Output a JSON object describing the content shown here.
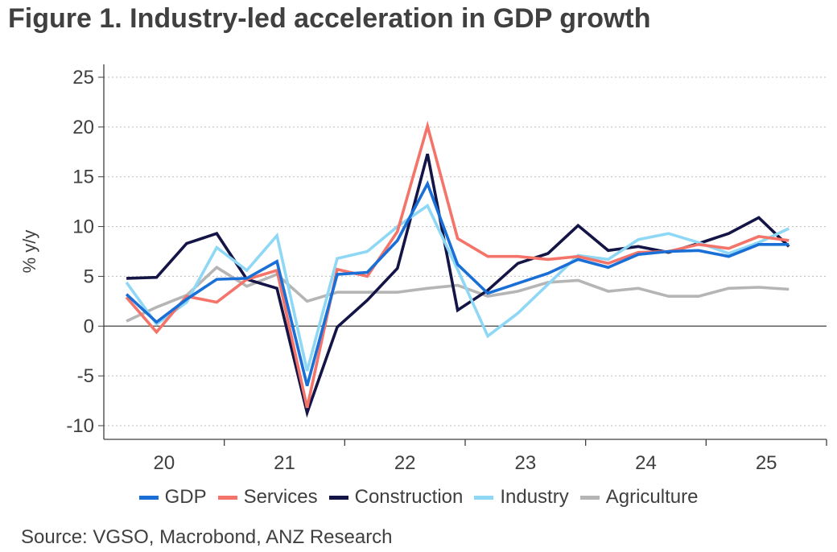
{
  "title": "Figure 1. Industry-led acceleration in GDP growth",
  "source": "Source: VGSO, Macrobond, ANZ Research",
  "chart_data": {
    "type": "line",
    "title": "Figure 1. Industry-led acceleration in GDP growth",
    "ylabel": "% y/y",
    "xlabel": "",
    "ylim": [
      -10,
      25
    ],
    "yticks": [
      25,
      20,
      15,
      10,
      5,
      0,
      -5,
      -10
    ],
    "ytick_labels": [
      "25",
      "20",
      "15",
      "10",
      "5",
      "0",
      "-5",
      "-10"
    ],
    "grid": "horizontal dotted",
    "legend_position": "bottom",
    "year_labels": [
      "20",
      "21",
      "22",
      "23",
      "24",
      "25"
    ],
    "quarters": [
      "20Q1",
      "20Q2",
      "20Q3",
      "20Q4",
      "21Q1",
      "21Q2",
      "21Q3",
      "21Q4",
      "22Q1",
      "22Q2",
      "22Q3",
      "22Q4",
      "23Q1",
      "23Q2",
      "23Q3",
      "23Q4",
      "24Q1",
      "24Q2",
      "24Q3",
      "24Q4",
      "25Q1",
      "25Q2",
      "25Q3"
    ],
    "series": [
      {
        "name": "GDP",
        "color": "#1a6fd6",
        "values": [
          3.2,
          0.4,
          2.7,
          4.7,
          4.8,
          6.5,
          -6.0,
          5.2,
          5.4,
          8.6,
          14.3,
          6.2,
          3.3,
          4.3,
          5.3,
          6.7,
          5.9,
          7.2,
          7.5,
          7.6,
          7.0,
          8.2,
          8.2
        ]
      },
      {
        "name": "Services",
        "color": "#f4746a",
        "values": [
          2.9,
          -0.6,
          3.0,
          2.4,
          4.7,
          5.6,
          -8.2,
          5.7,
          5.0,
          9.5,
          20.1,
          8.8,
          7.0,
          7.0,
          6.7,
          7.0,
          6.3,
          7.4,
          7.5,
          8.2,
          7.8,
          9.0,
          8.6
        ]
      },
      {
        "name": "Construction",
        "color": "#141446",
        "values": [
          4.8,
          4.9,
          8.3,
          9.3,
          4.7,
          3.8,
          -8.7,
          -0.1,
          2.6,
          5.8,
          17.3,
          1.6,
          3.6,
          6.3,
          7.3,
          10.1,
          7.6,
          8.0,
          7.4,
          8.3,
          9.3,
          10.9,
          8.0
        ]
      },
      {
        "name": "Industry",
        "color": "#8fd8f5",
        "values": [
          4.4,
          0.2,
          2.4,
          7.9,
          5.6,
          9.1,
          -4.5,
          6.8,
          7.5,
          10.0,
          12.1,
          5.7,
          -1.0,
          1.3,
          4.2,
          7.1,
          6.7,
          8.7,
          9.3,
          8.4,
          7.3,
          8.4,
          9.8
        ]
      },
      {
        "name": "Agriculture",
        "color": "#b5b5b5",
        "values": [
          0.5,
          1.9,
          3.1,
          5.9,
          4.0,
          5.2,
          2.5,
          3.4,
          3.4,
          3.4,
          3.8,
          4.1,
          3.0,
          3.5,
          4.4,
          4.6,
          3.5,
          3.8,
          3.0,
          3.0,
          3.8,
          3.9,
          3.7
        ]
      }
    ]
  }
}
